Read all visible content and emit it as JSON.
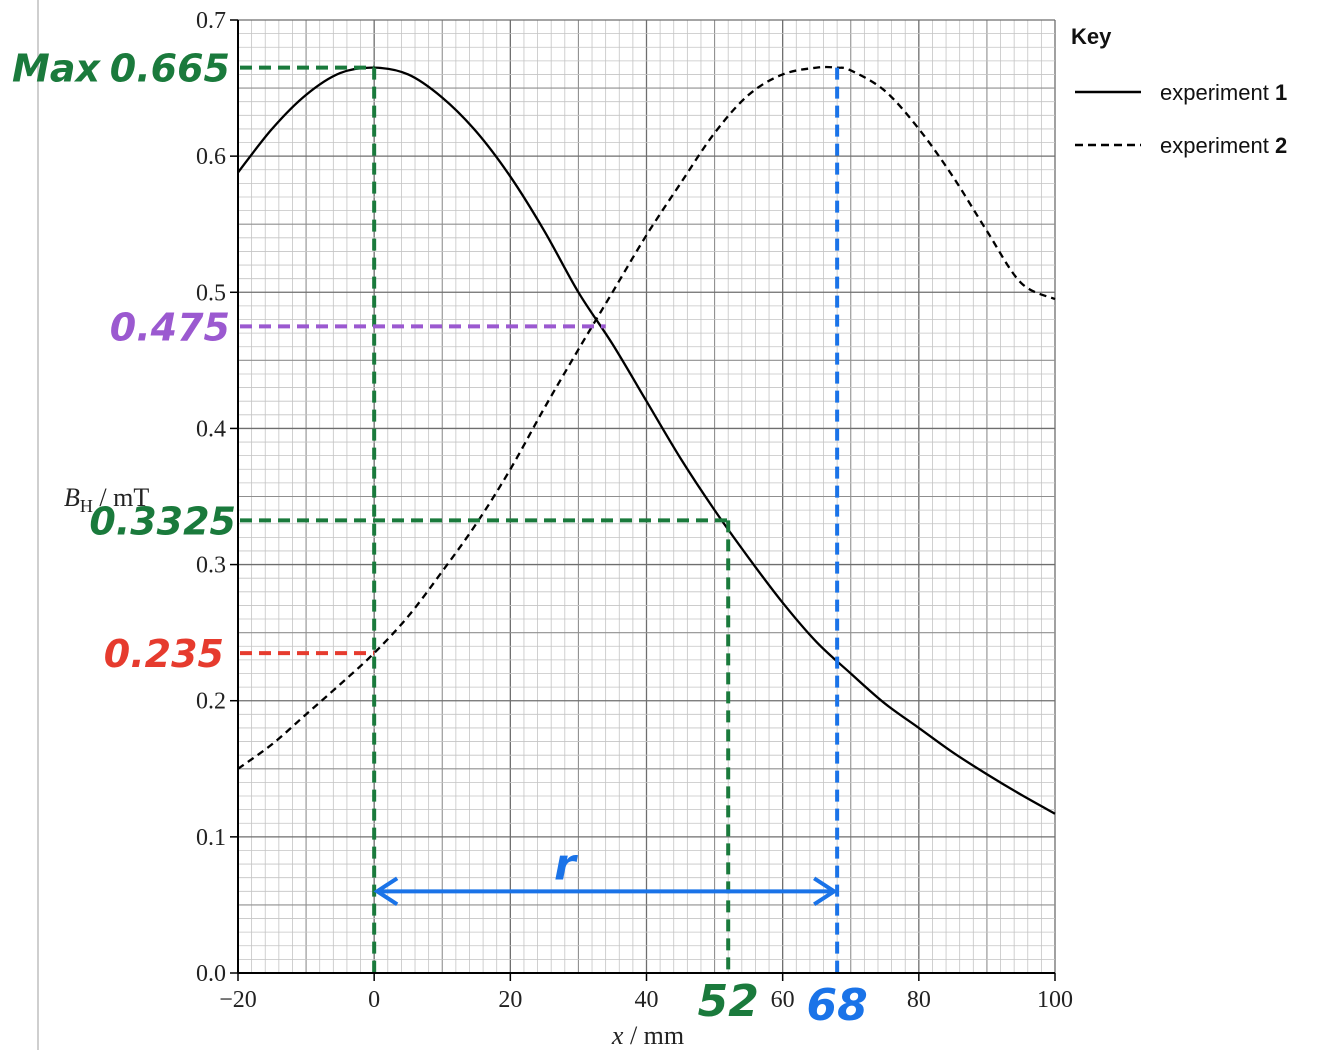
{
  "chart_data": {
    "type": "line",
    "xlabel_var": "x",
    "xlabel_unit": " / mm",
    "ylabel_var": "B",
    "ylabel_sub": "H",
    "ylabel_unit": " / mT",
    "xlim": [
      -20,
      100
    ],
    "ylim": [
      0.0,
      0.7
    ],
    "x_ticks": [
      "−20",
      "0",
      "20",
      "40",
      "60",
      "80",
      "100"
    ],
    "y_ticks": [
      "0.0",
      "0.1",
      "0.2",
      "0.3",
      "0.4",
      "0.5",
      "0.6",
      "0.7"
    ],
    "grid": true,
    "legend": {
      "title": "Key",
      "position": "right",
      "entries": [
        {
          "label": "experiment ",
          "num": "1",
          "style": "solid"
        },
        {
          "label": "experiment ",
          "num": "2",
          "style": "dashed"
        }
      ]
    },
    "series": [
      {
        "style": "solid",
        "x": [
          -20,
          -15,
          -10,
          -5,
          0,
          5,
          10,
          15,
          20,
          25,
          30,
          35,
          40,
          45,
          50,
          55,
          60,
          65,
          70,
          75,
          80,
          85,
          90,
          95,
          100
        ],
        "y": [
          0.588,
          0.62,
          0.645,
          0.661,
          0.665,
          0.66,
          0.643,
          0.618,
          0.585,
          0.545,
          0.5,
          0.462,
          0.42,
          0.378,
          0.34,
          0.305,
          0.272,
          0.243,
          0.22,
          0.198,
          0.18,
          0.162,
          0.146,
          0.131,
          0.117
        ]
      },
      {
        "style": "dashed",
        "x": [
          -20,
          -15,
          -10,
          -5,
          0,
          5,
          10,
          15,
          20,
          25,
          30,
          35,
          40,
          45,
          50,
          55,
          60,
          65,
          68,
          70,
          75,
          80,
          85,
          90,
          95,
          100
        ],
        "y": [
          0.15,
          0.168,
          0.19,
          0.212,
          0.235,
          0.262,
          0.295,
          0.33,
          0.37,
          0.415,
          0.458,
          0.5,
          0.542,
          0.58,
          0.617,
          0.645,
          0.66,
          0.665,
          0.665,
          0.663,
          0.648,
          0.62,
          0.585,
          0.545,
          0.507,
          0.495
        ]
      }
    ],
    "annotations": [
      {
        "type": "hline",
        "y": 0.665,
        "x_to": 0,
        "color": "#1a7a3c",
        "label": "0.665"
      },
      {
        "type": "vline",
        "x": 0,
        "y_to": 0.665,
        "color": "#1a7a3c"
      },
      {
        "type": "hline",
        "y": 0.475,
        "x_to": 34,
        "color": "#9b59d0",
        "label": "0.475"
      },
      {
        "type": "hline",
        "y": 0.3325,
        "x_to": 52,
        "color": "#1a7a3c",
        "label": "0.3325"
      },
      {
        "type": "vline",
        "x": 52,
        "y_to": 0.3325,
        "color": "#1a7a3c",
        "label": "52"
      },
      {
        "type": "hline",
        "y": 0.235,
        "x_to": 0,
        "color": "#e63b2e",
        "label": "0.235"
      },
      {
        "type": "vline",
        "x": 68,
        "y_to": 0.665,
        "color": "#1a73e8",
        "label": "68"
      },
      {
        "type": "arrow",
        "x_from": 0,
        "x_to": 68,
        "y": 0.06,
        "color": "#1a73e8",
        "label": "r"
      },
      {
        "type": "text",
        "label": "Max",
        "color": "#1a7a3c"
      }
    ]
  }
}
